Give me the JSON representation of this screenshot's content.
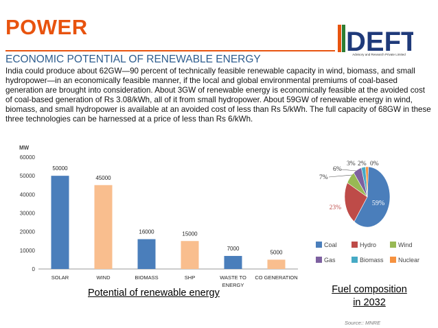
{
  "header": {
    "title": "POWER",
    "subtitle": "ECONOMIC POTENTIAL OF RENEWABLE ENERGY",
    "logo_text": "DEFT",
    "logo_tagline": "Advisory and Research Private Limited"
  },
  "body": {
    "paragraph": "India could produce about 62GW—90 percent of technically feasible renewable capacity in wind, biomass, and small hydropower—in an economically feasible manner, if the local and global environmental premiums of coal-based generation are brought into consideration. About 3GW of renewable energy is economically feasible at the avoided cost of coal-based generation of Rs 3.08/kWh, all of it from small hydropower. About 59GW of renewable energy in wind, biomass, and small hydropower is available at an avoided cost of less than Rs 5/kWh. The full capacity of 68GW in these three technologies can be harnessed at a price of less than Rs 6/kWh."
  },
  "chart_data": [
    {
      "type": "bar",
      "title": "",
      "ylabel": "MW",
      "xlabel": "",
      "categories": [
        "SOLAR",
        "WIND",
        "BIOMASS",
        "SHP",
        "WASTE TO ENERGY",
        "CO GENERATION"
      ],
      "values": [
        50000,
        45000,
        16000,
        15000,
        7000,
        5000
      ],
      "data_labels": [
        "50000",
        "45000",
        "16000",
        "15000",
        "7000",
        "5000"
      ],
      "colors": [
        "#4a7ebb",
        "#f9be8e",
        "#4a7ebb",
        "#f9be8e",
        "#4a7ebb",
        "#f9be8e"
      ],
      "ylim": [
        0,
        60000
      ],
      "yticks": [
        "0",
        "10000",
        "20000",
        "30000",
        "40000",
        "50000",
        "60000"
      ],
      "grid": false,
      "caption": "Potential of renewable energy"
    },
    {
      "type": "pie",
      "title": "",
      "categories": [
        "Coal",
        "Hydro",
        "Wind",
        "Gas",
        "Biomass",
        "Nuclear"
      ],
      "values": [
        59,
        23,
        7,
        6,
        3,
        2
      ],
      "data_labels": [
        "59%",
        "23%",
        "7%",
        "6%",
        "3%",
        "2%"
      ],
      "extra_label": "0%",
      "colors": [
        "#4a7ebb",
        "#be4b48",
        "#98b954",
        "#7d60a0",
        "#46aac5",
        "#f69240"
      ],
      "legend": "bottom",
      "caption_line1": "Fuel composition",
      "caption_line2": "in 2032"
    }
  ],
  "footer": {
    "source": "Source:: MNRE"
  }
}
